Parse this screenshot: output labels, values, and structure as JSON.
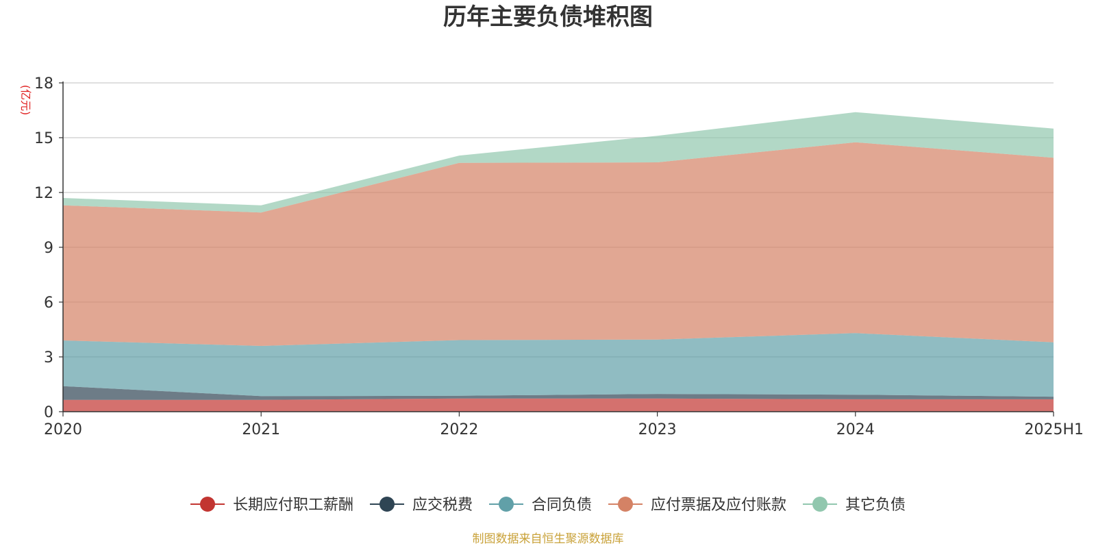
{
  "chart_data": {
    "type": "area",
    "stacked": true,
    "title": "历年主要负债堆积图",
    "unit_label": "(亿元)",
    "categories": [
      "2020",
      "2021",
      "2022",
      "2023",
      "2024",
      "2025H1"
    ],
    "ylim": [
      0,
      18
    ],
    "yticks": [
      0,
      3,
      6,
      9,
      12,
      15,
      18
    ],
    "grid": true,
    "legend_position": "bottom",
    "series": [
      {
        "name": "长期应付职工薪酬",
        "color": "#c23531",
        "values": [
          0.65,
          0.65,
          0.72,
          0.72,
          0.68,
          0.68
        ]
      },
      {
        "name": "应交税费",
        "color": "#2f4554",
        "values": [
          0.75,
          0.2,
          0.15,
          0.25,
          0.25,
          0.14
        ]
      },
      {
        "name": "合同负债",
        "color": "#61a0a8",
        "values": [
          2.5,
          2.75,
          3.05,
          2.98,
          3.37,
          2.98
        ]
      },
      {
        "name": "应付票据及应付账款",
        "color": "#d48265",
        "values": [
          7.4,
          7.3,
          9.7,
          9.7,
          10.45,
          10.1
        ]
      },
      {
        "name": "其它负债",
        "color": "#91c7ae",
        "values": [
          0.4,
          0.4,
          0.4,
          1.45,
          1.65,
          1.6
        ]
      }
    ],
    "source": "制图数据来自恒生聚源数据库"
  }
}
